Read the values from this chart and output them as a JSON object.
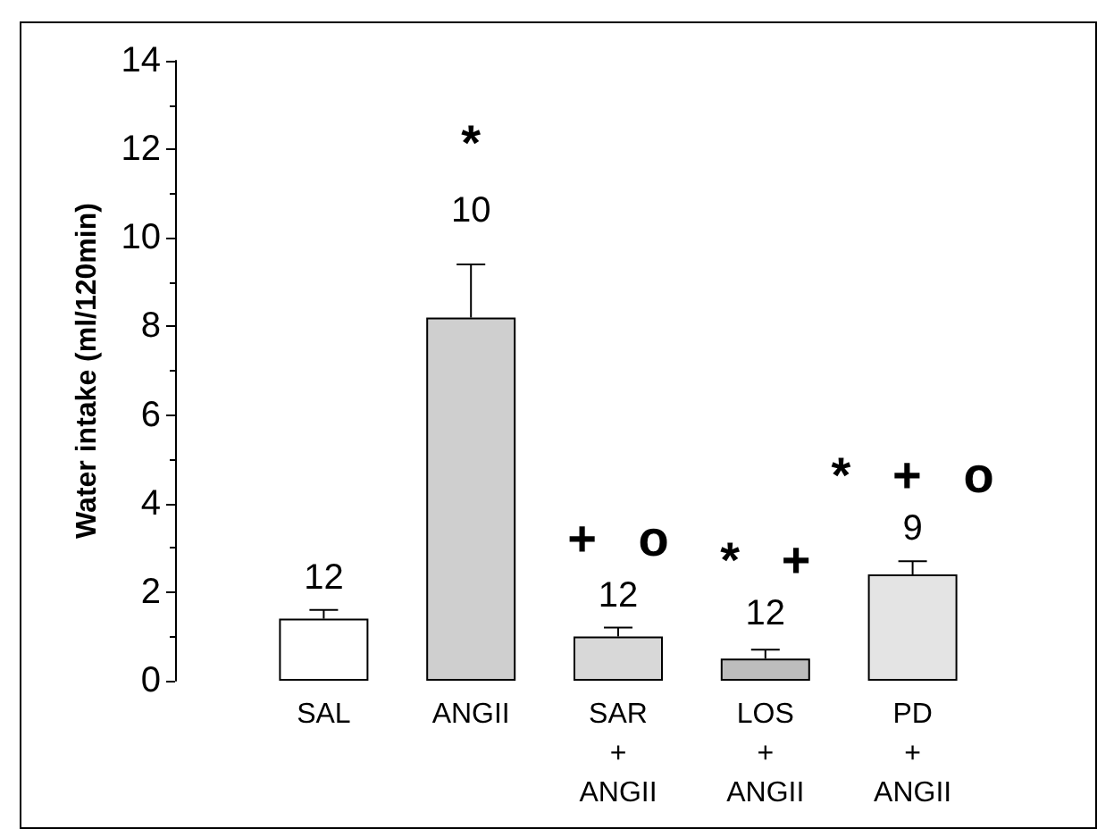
{
  "chart_data": {
    "type": "bar",
    "ylabel": "Water intake (ml/120min)",
    "categories": [
      "SAL",
      "ANGII",
      "SAR\n+\nANGII",
      "LOS\n+\nANGII",
      "PD\n+\nANGII"
    ],
    "values": [
      1.4,
      8.2,
      1.0,
      0.5,
      2.4
    ],
    "colors": [
      "#ffffff",
      "#cfcfcf",
      "#d8d8d8",
      "#bdbdbd",
      "#e4e4e4"
    ],
    "errors": [
      [
        1.4,
        1.6
      ],
      [
        8.2,
        9.4
      ],
      [
        1.0,
        1.2
      ],
      [
        0.5,
        0.7
      ],
      [
        2.4,
        2.7
      ]
    ],
    "ylim": [
      0,
      14
    ],
    "yticks": [
      0,
      2,
      4,
      6,
      8,
      10,
      12,
      14
    ],
    "grid": false,
    "annotations": [
      "12",
      "10",
      "*",
      "12",
      "+   o",
      "12",
      "*   +",
      "9",
      "*   +   o"
    ]
  }
}
